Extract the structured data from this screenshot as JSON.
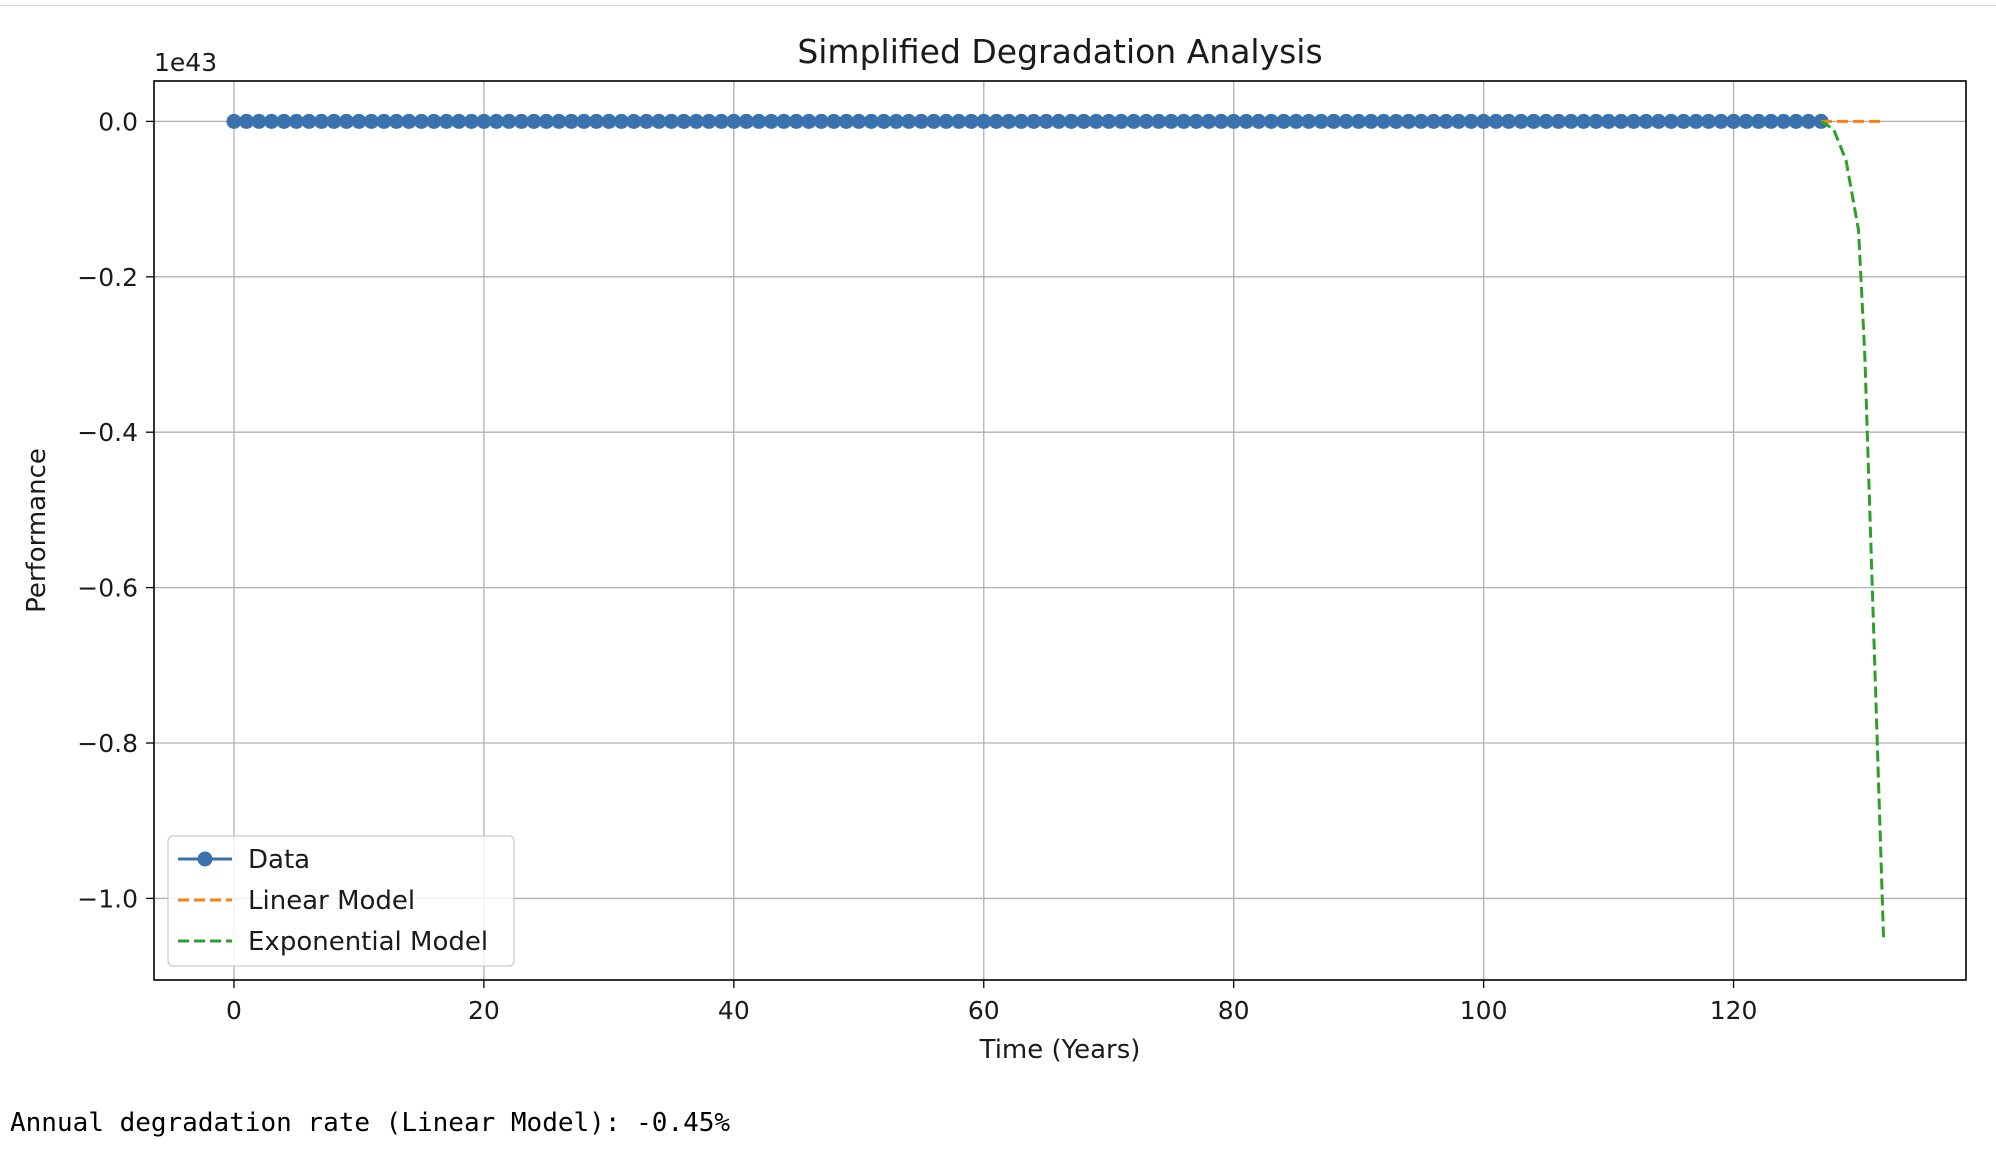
{
  "chart_data": {
    "type": "line",
    "title": "Simplified Degradation Analysis",
    "xlabel": "Time (Years)",
    "ylabel": "Performance",
    "y_offset_label": "1e43",
    "xlim": [
      -6.4,
      138.6
    ],
    "ylim": [
      -1.105,
      0.052
    ],
    "x_ticks": [
      0,
      20,
      40,
      60,
      80,
      100,
      120
    ],
    "x_tick_labels": [
      "0",
      "20",
      "40",
      "60",
      "80",
      "100",
      "120"
    ],
    "y_ticks": [
      0.0,
      -0.2,
      -0.4,
      -0.6,
      -0.8,
      -1.0
    ],
    "y_tick_labels": [
      "0.0",
      "−0.2",
      "−0.4",
      "−0.6",
      "−0.8",
      "−1.0"
    ],
    "grid": true,
    "legend_position": "lower-left",
    "series": [
      {
        "name": "Data",
        "style": "line-markers",
        "color": "#3a72b0",
        "x_start": 0,
        "x_end": 127,
        "x_step": 1,
        "y_constant": 0.0
      },
      {
        "name": "Linear Model",
        "style": "dashed",
        "color": "#ff7f0e",
        "x": [
          127,
          132
        ],
        "y": [
          0.0,
          0.0
        ]
      },
      {
        "name": "Exponential Model",
        "style": "dashed",
        "color": "#2ca02c",
        "x": [
          127,
          128,
          129,
          130,
          130.5,
          131,
          131.5,
          132
        ],
        "y": [
          0.0,
          -0.01,
          -0.05,
          -0.14,
          -0.3,
          -0.55,
          -0.8,
          -1.05
        ]
      }
    ]
  },
  "output": {
    "text": "Annual degradation rate (Linear Model): -0.45%"
  }
}
